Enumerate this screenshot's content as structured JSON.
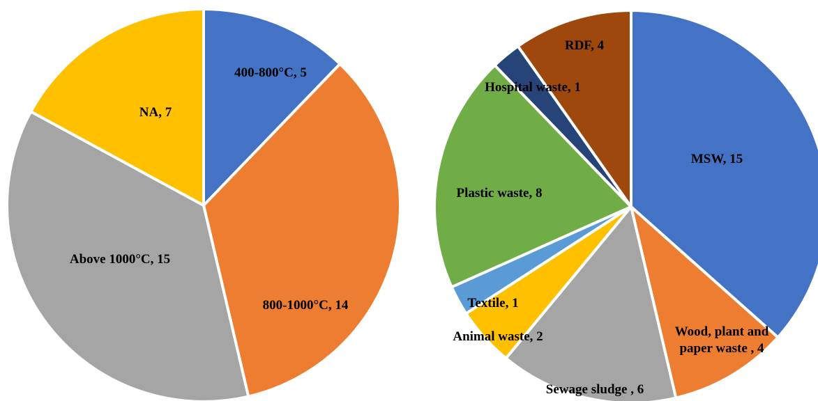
{
  "chart_data": [
    {
      "type": "pie",
      "slices": [
        {
          "label": "400-800°C, 5",
          "value": 5,
          "color": "#4472C4"
        },
        {
          "label": "800-1000°C, 14",
          "value": 14,
          "color": "#ED7D31"
        },
        {
          "label": "Above 1000°C, 15",
          "value": 15,
          "color": "#A5A5A5"
        },
        {
          "label": "NA, 7",
          "value": 7,
          "color": "#FFC000"
        }
      ]
    },
    {
      "type": "pie",
      "slices": [
        {
          "label": "MSW, 15",
          "value": 15,
          "color": "#4472C4"
        },
        {
          "label": "Wood, plant and paper waste , 4",
          "value": 4,
          "color": "#ED7D31"
        },
        {
          "label": "Sewage sludge , 6",
          "value": 6,
          "color": "#A5A5A5"
        },
        {
          "label": "Animal waste, 2",
          "value": 2,
          "color": "#FFC000"
        },
        {
          "label": "Textile, 1",
          "value": 1,
          "color": "#5B9BD5"
        },
        {
          "label": "Plastic waste, 8",
          "value": 8,
          "color": "#70AD47"
        },
        {
          "label": "Hospital waste, 1",
          "value": 1,
          "color": "#264478"
        },
        {
          "label": "RDF, 4",
          "value": 4,
          "color": "#9E480E"
        }
      ]
    }
  ]
}
